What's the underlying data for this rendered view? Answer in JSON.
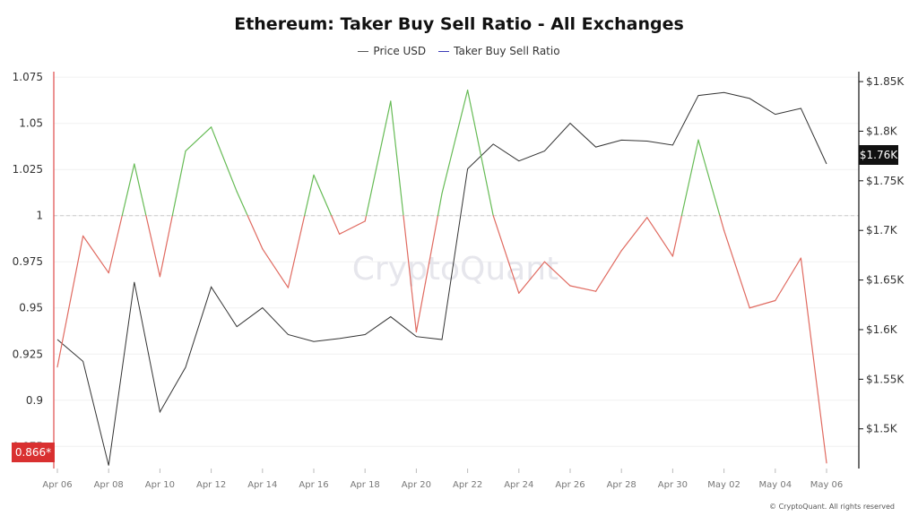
{
  "chart_data": {
    "type": "line",
    "title": "Ethereum: Taker Buy Sell Ratio - All Exchanges",
    "watermark": "CryptoQuant",
    "copyright": "© CryptoQuant. All rights reserved",
    "legend": {
      "placement": "top-center",
      "items": [
        {
          "label": "Price USD",
          "color": "#555555"
        },
        {
          "label": "Taker Buy Sell Ratio",
          "color": "#3b3bb8"
        }
      ]
    },
    "x": [
      "Apr 06",
      "Apr 07",
      "Apr 08",
      "Apr 09",
      "Apr 10",
      "Apr 11",
      "Apr 12",
      "Apr 13",
      "Apr 14",
      "Apr 15",
      "Apr 16",
      "Apr 17",
      "Apr 18",
      "Apr 19",
      "Apr 20",
      "Apr 21",
      "Apr 22",
      "Apr 23",
      "Apr 24",
      "Apr 25",
      "Apr 26",
      "Apr 27",
      "Apr 28",
      "Apr 29",
      "Apr 30",
      "May 01",
      "May 02",
      "May 03",
      "May 04",
      "May 05",
      "May 06"
    ],
    "x_tick_labels": [
      "Apr 06",
      "Apr 08",
      "Apr 10",
      "Apr 12",
      "Apr 14",
      "Apr 16",
      "Apr 18",
      "Apr 20",
      "Apr 22",
      "Apr 24",
      "Apr 26",
      "Apr 28",
      "Apr 30",
      "May 02",
      "May 04",
      "May 06"
    ],
    "y_left": {
      "ticks": [
        "1.075",
        "1.05",
        "1.025",
        "1",
        "0.975",
        "0.95",
        "0.925",
        "0.9",
        "0.875"
      ],
      "lim": [
        0.863,
        1.078
      ],
      "reference_line": 1
    },
    "y_right": {
      "ticks": [
        "$1.85K",
        "$1.8K",
        "$1.75K",
        "$1.7K",
        "$1.65K",
        "$1.6K",
        "$1.55K",
        "$1.5K"
      ],
      "lim": [
        1460,
        1860
      ]
    },
    "series": [
      {
        "name": "Price USD",
        "axis": "right",
        "color": "#333333",
        "values": [
          1590,
          1568,
          1463,
          1648,
          1517,
          1562,
          1643,
          1603,
          1622,
          1595,
          1588,
          1591,
          1595,
          1613,
          1593,
          1590,
          1762,
          1787,
          1770,
          1780,
          1808,
          1784,
          1791,
          1790,
          1786,
          1836,
          1839,
          1833,
          1817,
          1823,
          1767
        ]
      },
      {
        "name": "Taker Buy Sell Ratio",
        "axis": "left",
        "color_above": "#66bb55",
        "color_below": "#e06a60",
        "values": [
          0.918,
          0.989,
          0.969,
          1.028,
          0.967,
          1.035,
          1.048,
          1.013,
          0.982,
          0.961,
          1.022,
          0.99,
          0.997,
          1.062,
          0.937,
          1.012,
          1.068,
          1.0,
          0.958,
          0.975,
          0.962,
          0.959,
          0.981,
          0.999,
          0.978,
          1.041,
          0.992,
          0.95,
          0.954,
          0.977,
          0.866
        ]
      }
    ],
    "badges": {
      "left_value": "0.866*",
      "left_color": "#d93030",
      "right_value": "$1.76K",
      "right_color": "#111111"
    },
    "grid": true
  }
}
